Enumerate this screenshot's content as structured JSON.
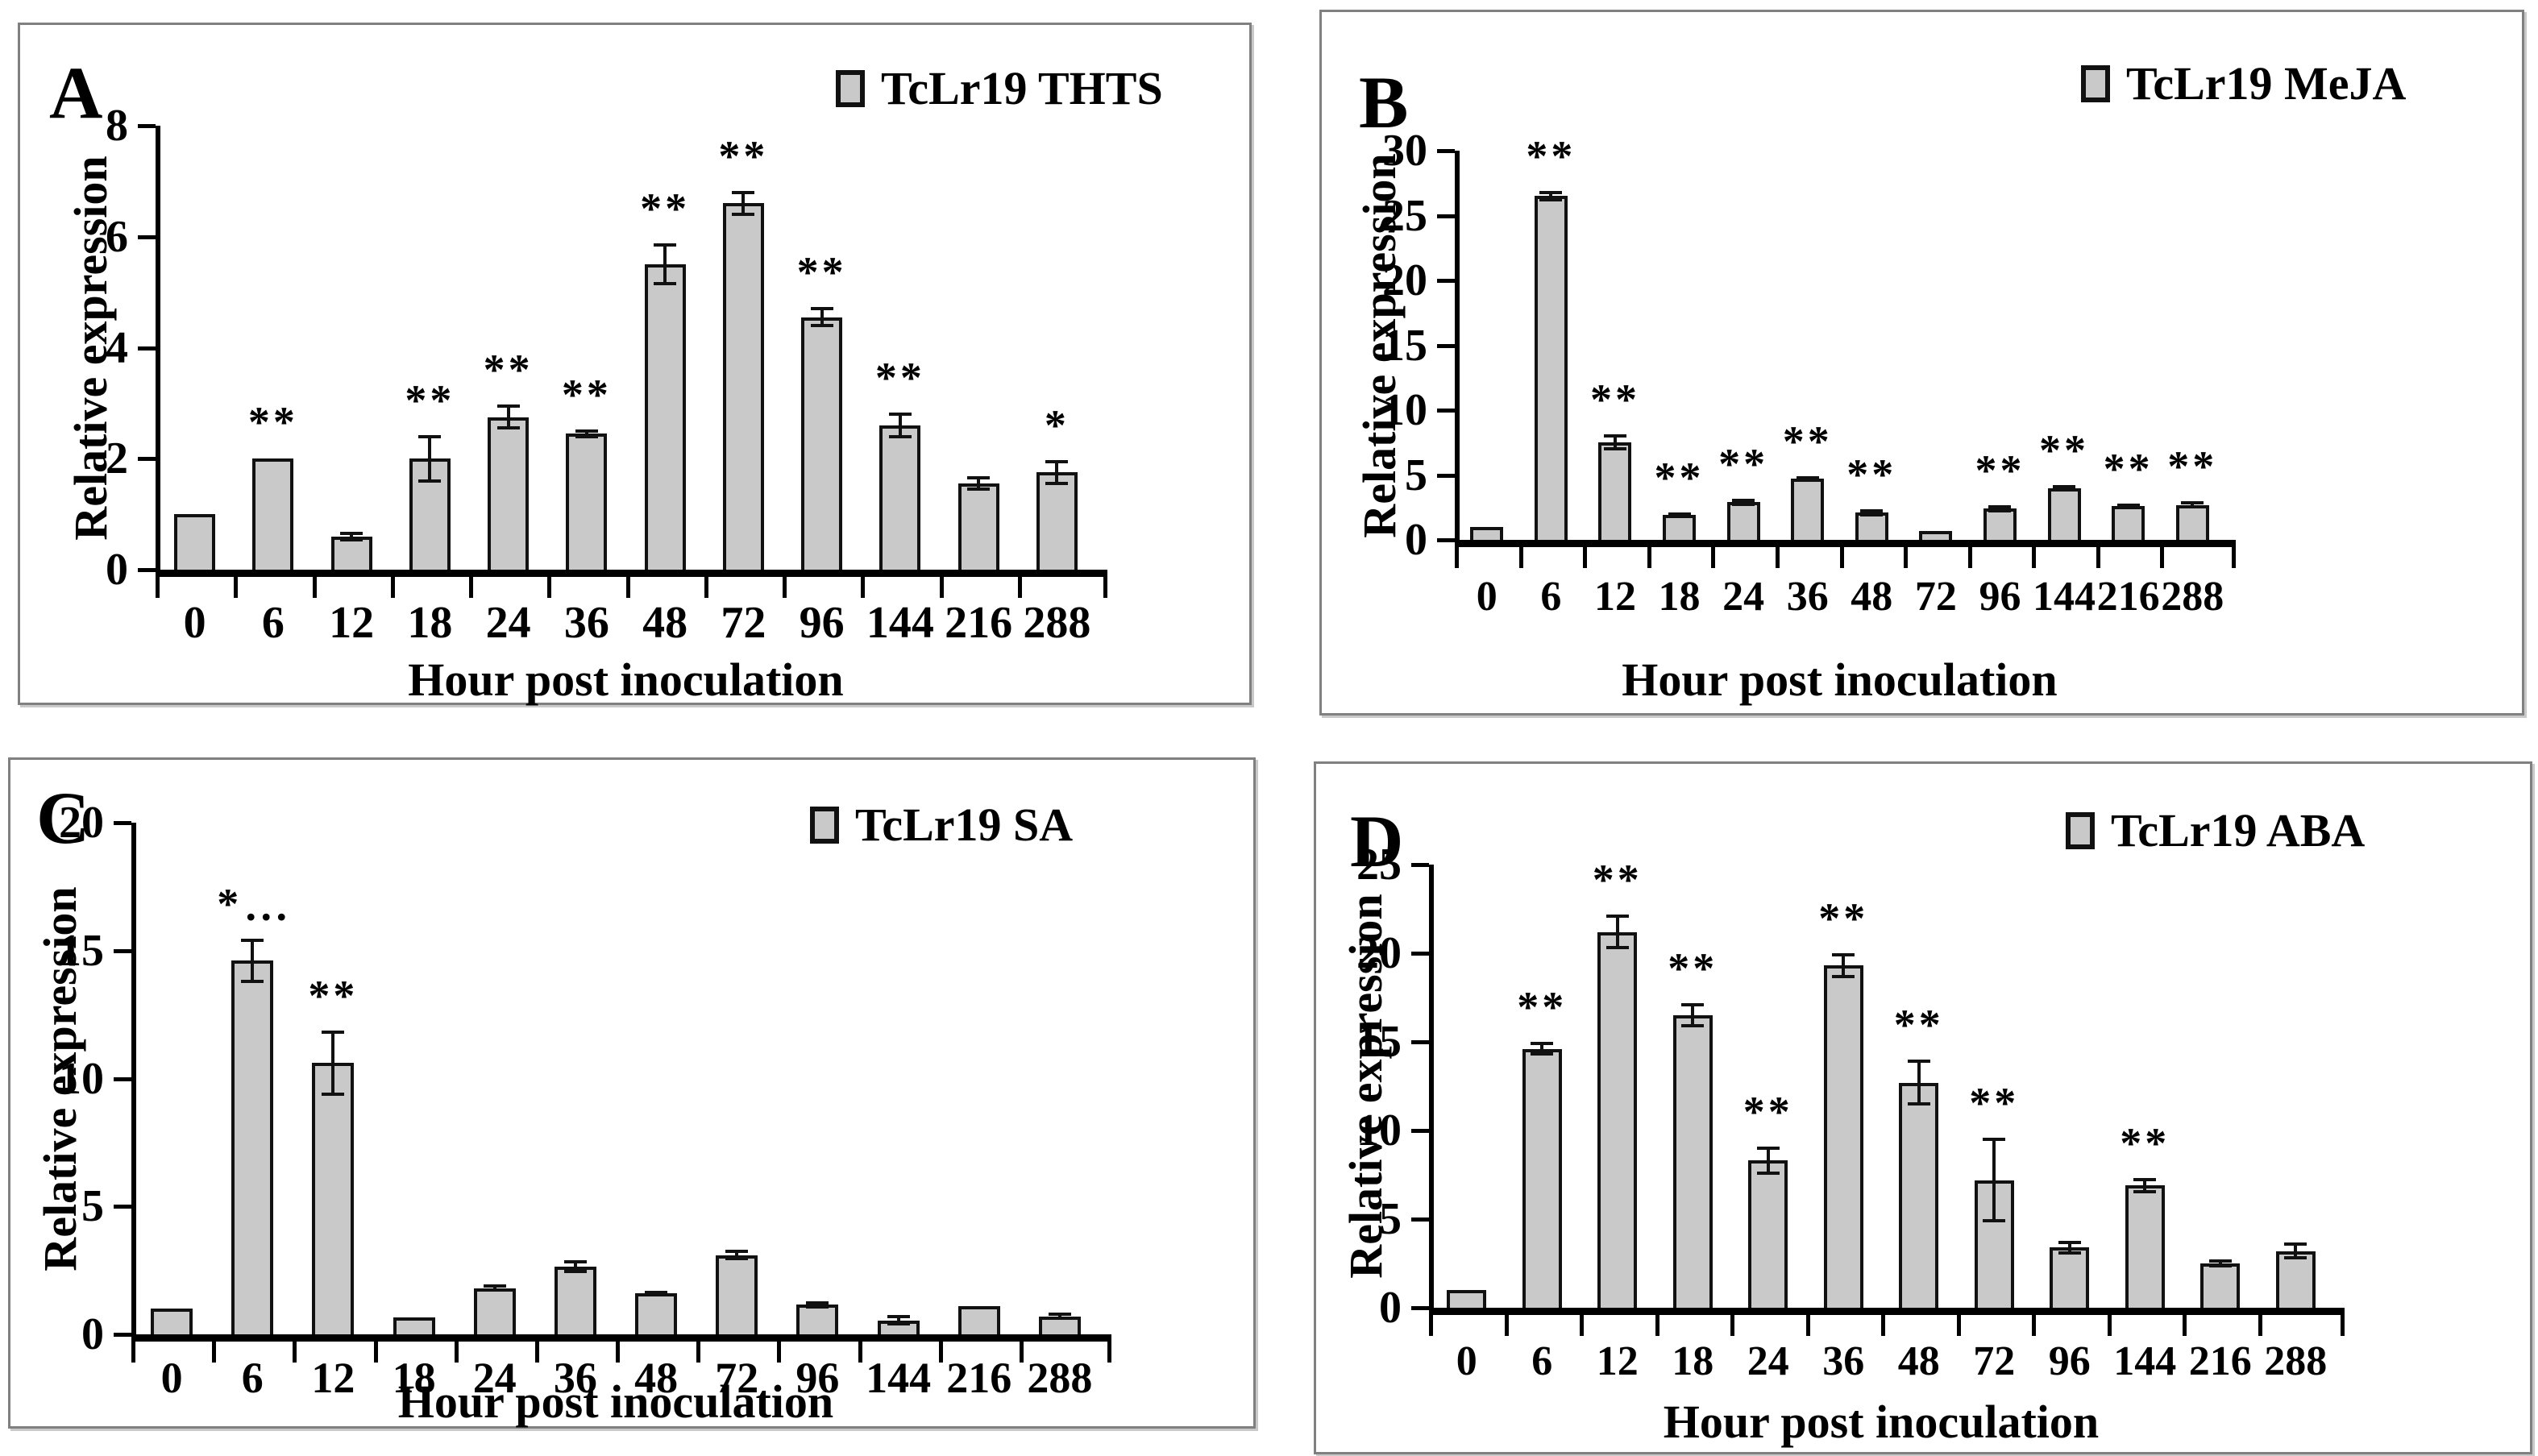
{
  "figure": {
    "xlabel": "Hour post inoculation",
    "ylabel": "Relative expression",
    "bar_fill_color": "#c9c9c9",
    "bar_border_color": "#111111",
    "axis_color": "#000000",
    "panel_border_color": "#808080"
  },
  "chart_data": [
    {
      "type": "bar",
      "panel_label": "A",
      "legend": "TcLr19 THTS",
      "xlabel": "Hour post inoculation",
      "ylabel": "Relative expression",
      "categories": [
        "0",
        "6",
        "12",
        "18",
        "24",
        "36",
        "48",
        "72",
        "96",
        "144",
        "216",
        "288"
      ],
      "values": [
        1.0,
        2.0,
        0.6,
        2.0,
        2.75,
        2.45,
        5.5,
        6.6,
        4.55,
        2.6,
        1.55,
        1.75
      ],
      "errors": [
        0,
        0,
        0.06,
        0.4,
        0.2,
        0.05,
        0.35,
        0.2,
        0.15,
        0.2,
        0.1,
        0.2
      ],
      "sig": [
        "",
        "**",
        "",
        "**",
        "**",
        "**",
        "**",
        "**",
        "**",
        "**",
        "",
        "*"
      ],
      "yticks": [
        0,
        2,
        4,
        6,
        8
      ],
      "ylim": [
        0,
        8
      ],
      "legend_position": "top-right",
      "grid": false
    },
    {
      "type": "bar",
      "panel_label": "B",
      "legend": "TcLr19 MeJA",
      "xlabel": "Hour post inoculation",
      "ylabel": "Relative expression",
      "categories": [
        "0",
        "6",
        "12",
        "18",
        "24",
        "36",
        "48",
        "72",
        "96",
        "144",
        "216",
        "288"
      ],
      "values": [
        1.0,
        26.5,
        7.5,
        1.9,
        2.9,
        4.7,
        2.1,
        0.7,
        2.4,
        4.0,
        2.6,
        2.7
      ],
      "errors": [
        0,
        0.3,
        0.5,
        0.1,
        0.15,
        0.1,
        0.15,
        0,
        0.15,
        0.08,
        0.1,
        0.15
      ],
      "sig": [
        "",
        "**",
        "**",
        "**",
        "**",
        "**",
        "**",
        "",
        "**",
        "**",
        "**",
        "**"
      ],
      "yticks": [
        0,
        5,
        10,
        15,
        20,
        25,
        30
      ],
      "ylim": [
        0,
        30
      ],
      "legend_position": "top-right",
      "grid": false
    },
    {
      "type": "bar",
      "panel_label": "C",
      "legend": "TcLr19 SA",
      "xlabel": "Hour post inoculation",
      "ylabel": "Relative expression",
      "categories": [
        "0",
        "6",
        "12",
        "18",
        "24",
        "36",
        "48",
        "72",
        "96",
        "144",
        "216",
        "288"
      ],
      "values": [
        1.0,
        14.6,
        10.6,
        0.65,
        1.8,
        2.65,
        1.6,
        3.1,
        1.15,
        0.55,
        1.1,
        0.7
      ],
      "errors": [
        0,
        0.8,
        1.2,
        0,
        0.08,
        0.18,
        0.05,
        0.15,
        0.08,
        0.15,
        0,
        0.08
      ],
      "sig": [
        "",
        "*···",
        "**",
        "",
        "",
        "",
        "",
        "",
        "",
        "",
        "",
        ""
      ],
      "yticks": [
        0,
        5,
        10,
        15,
        20
      ],
      "ylim": [
        0,
        20
      ],
      "legend_position": "top-right",
      "grid": false
    },
    {
      "type": "bar",
      "panel_label": "D",
      "legend": "TcLr19 ABA",
      "xlabel": "Hour post inoculation",
      "ylabel": "Relative expression",
      "categories": [
        "0",
        "6",
        "12",
        "18",
        "24",
        "36",
        "48",
        "72",
        "96",
        "144",
        "216",
        "288"
      ],
      "values": [
        1.0,
        14.6,
        21.2,
        16.5,
        8.3,
        19.3,
        12.7,
        7.2,
        3.4,
        6.9,
        2.5,
        3.2
      ],
      "errors": [
        0,
        0.3,
        0.9,
        0.6,
        0.7,
        0.6,
        1.2,
        2.3,
        0.3,
        0.35,
        0.12,
        0.4
      ],
      "sig": [
        "",
        "**",
        "**",
        "**",
        "**",
        "**",
        "**",
        "**",
        "",
        "**",
        "",
        ""
      ],
      "yticks": [
        0,
        5,
        10,
        15,
        20,
        25
      ],
      "ylim": [
        0,
        25
      ],
      "legend_position": "top-right",
      "grid": false
    }
  ]
}
